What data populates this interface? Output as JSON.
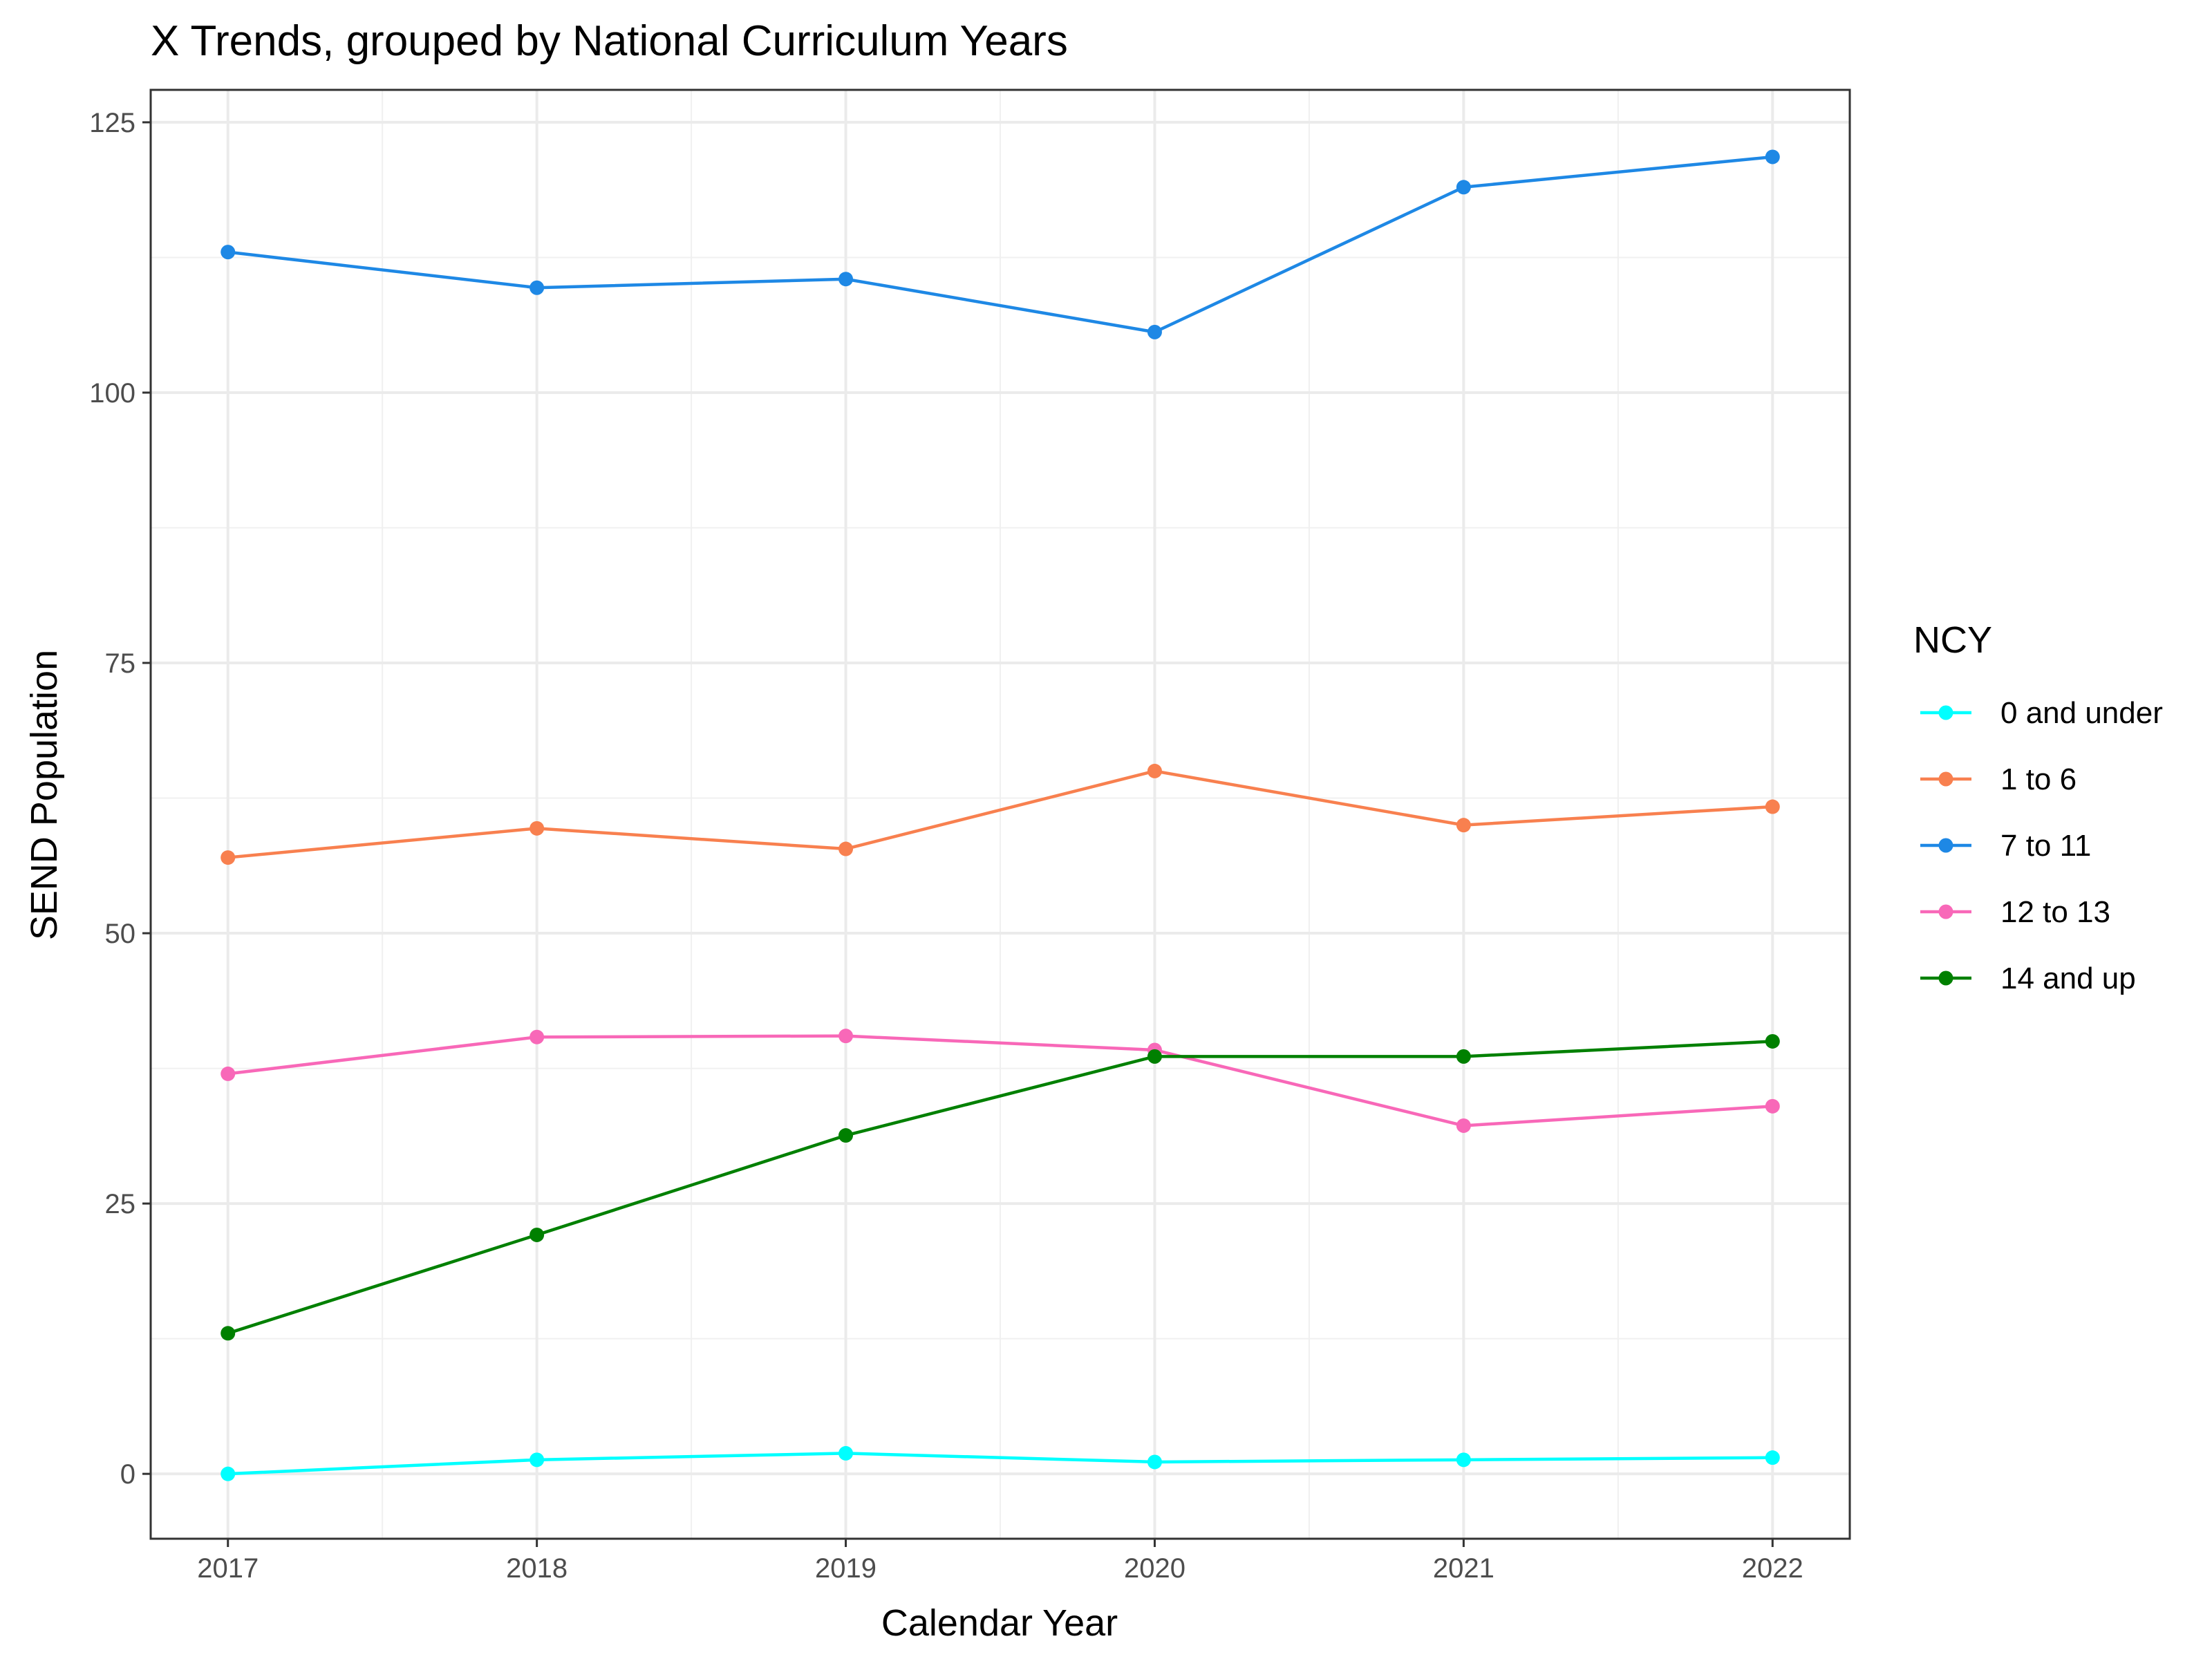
{
  "chart_data": {
    "type": "line",
    "title": "X Trends, grouped by National Curriculum Years",
    "xlabel": "Calendar Year",
    "ylabel": "SEND Population",
    "x": [
      2017,
      2018,
      2019,
      2020,
      2021,
      2022
    ],
    "x_tick_labels": [
      "2017",
      "2018",
      "2019",
      "2020",
      "2021",
      "2022"
    ],
    "y_ticks": [
      0,
      25,
      50,
      75,
      100,
      125
    ],
    "y_tick_labels": [
      "0",
      "25",
      "50",
      "75",
      "100",
      "125"
    ],
    "xlim": [
      2016.75,
      2022.25
    ],
    "ylim": [
      -6,
      128
    ],
    "grid": true,
    "legend": {
      "title": "NCY",
      "position": "right"
    },
    "series": [
      {
        "name": "0 and under",
        "color": "#00FFFF",
        "values": [
          0,
          1.3,
          1.9,
          1.1,
          1.3,
          1.5
        ]
      },
      {
        "name": "1 to 6",
        "color": "#F8804F",
        "values": [
          57,
          59.7,
          57.8,
          65,
          60,
          61.7
        ]
      },
      {
        "name": "7 to 11",
        "color": "#1E88E5",
        "values": [
          113,
          109.7,
          110.5,
          105.6,
          119,
          121.8
        ]
      },
      {
        "name": "12 to 13",
        "color": "#F868B8",
        "values": [
          37,
          40.4,
          40.5,
          39.2,
          32.2,
          34
        ]
      },
      {
        "name": "14 and up",
        "color": "#008000",
        "values": [
          13,
          22.1,
          31.3,
          38.6,
          38.6,
          40
        ]
      }
    ]
  }
}
